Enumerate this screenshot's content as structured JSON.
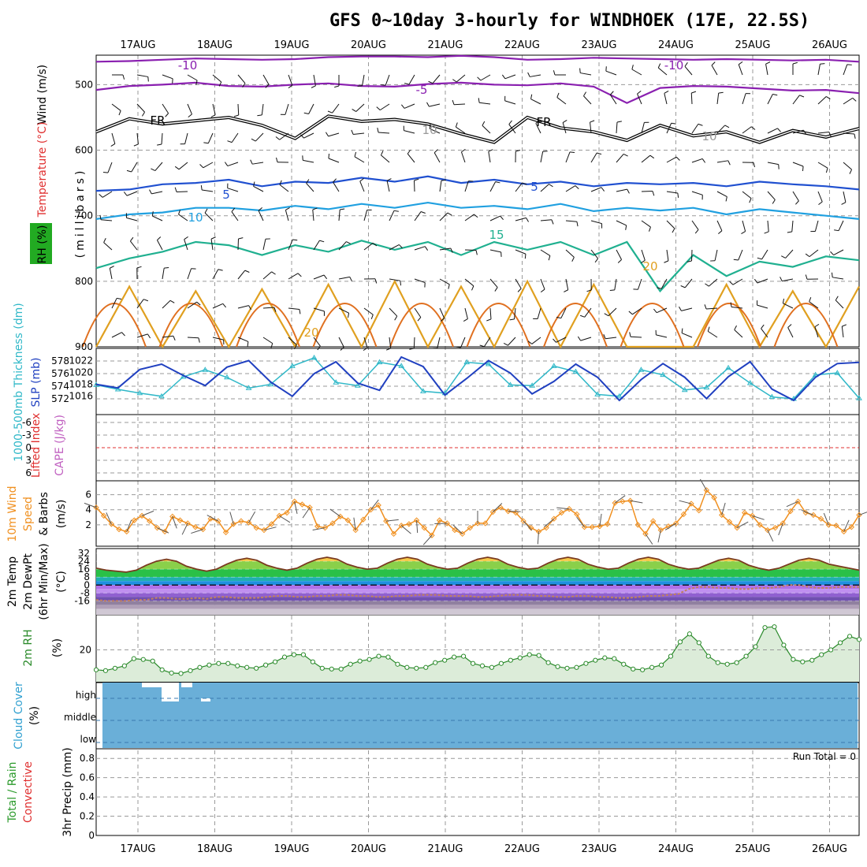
{
  "title": "GFS 0~10day 3-hourly for WINDHOEK (17E, 22.5S)",
  "dates": [
    "17AUG",
    "18AUG",
    "19AUG",
    "20AUG",
    "21AUG",
    "22AUG",
    "23AUG",
    "24AUG",
    "25AUG",
    "26AUG"
  ],
  "run_total_label": "Run Total = 0",
  "colors": {
    "grid": "#9a9a9a",
    "cloud_fill": "#6aafd8",
    "rh_fill": "#dcecd9",
    "rh_line": "#2a8a2a",
    "wind_line": "#f09020",
    "thickness_line": "#30b8c8",
    "slp_line": "#2040c0"
  },
  "chart_data": [
    {
      "panel": "upper-air",
      "type": "line",
      "ylabel_parts": [
        "RH (%)",
        "Temperature (°C)",
        "Wind (m/s)"
      ],
      "ylabel_unit": "(millibars)",
      "y_ticks": [
        500,
        600,
        700,
        800,
        900
      ],
      "ylim": [
        455,
        900
      ],
      "contour_labels": [
        "-10",
        "-10",
        "-5",
        "FR",
        "FR",
        "5",
        "5",
        "10",
        "15",
        "20",
        "20",
        "10",
        "10"
      ],
      "isotherms": [
        {
          "label": "-10",
          "color": "#8a20b0",
          "values": [
            465,
            464,
            462,
            460,
            461,
            462,
            461,
            458,
            457,
            457,
            458,
            456,
            458,
            462,
            461,
            459,
            460,
            461,
            462,
            461,
            462,
            463,
            462,
            465
          ]
        },
        {
          "label": "-5",
          "color": "#8a20b0",
          "values": [
            508,
            502,
            500,
            497,
            502,
            503,
            500,
            498,
            502,
            503,
            499,
            497,
            500,
            501,
            498,
            503,
            528,
            505,
            502,
            503,
            506,
            509,
            508,
            513
          ]
        },
        {
          "label": "FR",
          "color": "#000000",
          "values": [
            572,
            552,
            560,
            555,
            550,
            562,
            582,
            548,
            556,
            553,
            560,
            575,
            588,
            550,
            566,
            572,
            585,
            562,
            578,
            572,
            588,
            570,
            580,
            567
          ]
        },
        {
          "label": "5",
          "color": "#2050d0",
          "values": [
            662,
            660,
            652,
            650,
            645,
            655,
            648,
            650,
            642,
            648,
            640,
            650,
            645,
            652,
            648,
            655,
            650,
            652,
            650,
            655,
            648,
            652,
            655,
            660
          ]
        },
        {
          "label": "10",
          "color": "#20a0e0",
          "values": [
            705,
            698,
            695,
            688,
            688,
            692,
            685,
            690,
            682,
            688,
            680,
            688,
            685,
            690,
            682,
            693,
            688,
            692,
            688,
            698,
            690,
            695,
            700,
            705
          ]
        },
        {
          "label": "15",
          "color": "#20b090",
          "values": [
            780,
            765,
            755,
            740,
            745,
            760,
            745,
            755,
            738,
            752,
            740,
            760,
            740,
            752,
            740,
            760,
            740,
            815,
            760,
            792,
            770,
            778,
            762,
            768
          ]
        },
        {
          "label": "20",
          "color": "#e0a020",
          "values": [
            900,
            808,
            900,
            815,
            900,
            812,
            900,
            805,
            900,
            800,
            900,
            808,
            900,
            800,
            900,
            805,
            900,
            900,
            900,
            805,
            900,
            815,
            900,
            808
          ]
        }
      ]
    },
    {
      "panel": "thickness-slp",
      "type": "line",
      "ylabel": "1000-500mb Thickness (dm)",
      "ylabel2": "SLP (mb)",
      "thickness_ticks": [
        572,
        574,
        576,
        578
      ],
      "slp_ticks": [
        1016,
        1018,
        1020,
        1022
      ],
      "series": [
        {
          "name": "1000-500mb Thickness (dm)",
          "values": [
            574.2,
            573.5,
            572.9,
            572.4,
            575.5,
            576.6,
            575.4,
            573.7,
            574.3,
            577.2,
            578.5,
            574.6,
            574.1,
            577.8,
            577.2,
            573.2,
            572.9,
            577.8,
            577.5,
            574.2,
            574.1,
            577.2,
            576.3,
            572.7,
            572.4,
            576.6,
            575.8,
            573.4,
            573.8,
            576.9,
            574.5,
            572.3,
            572.0,
            575.8,
            576.1,
            572.1
          ]
        },
        {
          "name": "SLP (mb)",
          "values": [
            1018.0,
            1017.4,
            1020.5,
            1021.4,
            1019.5,
            1017.8,
            1020.9,
            1022.0,
            1018.4,
            1016.0,
            1019.8,
            1021.8,
            1018.2,
            1017.0,
            1022.6,
            1021.0,
            1016.2,
            1019.0,
            1022.0,
            1019.9,
            1016.4,
            1018.5,
            1021.4,
            1019.2,
            1015.3,
            1018.8,
            1021.5,
            1019.2,
            1015.6,
            1019.3,
            1021.8,
            1017.2,
            1015.3,
            1019.2,
            1021.5,
            1021.7
          ]
        }
      ]
    },
    {
      "panel": "cape-li",
      "type": "line",
      "ylabel": "Lifted Index",
      "ylabel2": "CAPE (J/kg)",
      "y_ticks": [
        "-6",
        "-3",
        "0",
        "3",
        "6"
      ],
      "ylim": [
        -6,
        6
      ],
      "series": [
        {
          "name": "Lifted Index",
          "values": []
        }
      ]
    },
    {
      "panel": "wind10m",
      "type": "line",
      "ylabel_parts": [
        "10m Wind",
        "Speed",
        "& Barbs"
      ],
      "ylabel_unit": "(m/s)",
      "y_ticks": [
        2,
        4,
        6
      ],
      "ylim": [
        0,
        7
      ],
      "series": [
        {
          "name": "10m Wind Speed",
          "values": [
            4.3,
            3.2,
            2.1,
            1.4,
            1.1,
            2.6,
            3.2,
            2.5,
            1.6,
            1.1,
            3.1,
            2.6,
            2.2,
            1.7,
            1.4,
            2.8,
            2.5,
            1.0,
            2.1,
            2.5,
            2.3,
            1.6,
            1.3,
            2.1,
            3.2,
            3.6,
            5.1,
            4.7,
            4.3,
            1.8,
            1.6,
            2.2,
            3.1,
            2.6,
            1.3,
            2.7,
            4.0,
            4.6,
            2.5,
            0.8,
            1.9,
            2.1,
            2.6,
            1.6,
            0.6,
            2.6,
            2.2,
            1.3,
            0.8,
            1.6,
            2.2,
            2.2,
            3.7,
            4.3,
            3.8,
            3.6,
            2.5,
            1.6,
            1.1,
            1.6,
            2.8,
            3.6,
            4.1,
            3.4,
            1.7,
            1.7,
            1.8,
            2.1,
            4.9,
            5.1,
            5.2,
            2.0,
            0.8,
            2.5,
            1.3,
            1.8,
            2.2,
            3.4,
            4.8,
            3.9,
            6.6,
            5.6,
            3.3,
            2.4,
            1.6,
            3.6,
            3.2,
            2.0,
            1.3,
            1.6,
            2.2,
            3.8,
            5.1,
            3.6,
            3.3,
            2.8,
            2.0,
            1.9,
            1.1,
            1.7,
            3.3
          ]
        }
      ]
    },
    {
      "panel": "temperature",
      "type": "area",
      "ylabel_parts": [
        "2m Temp",
        "2m DewPt",
        "(6hr Min/Max)"
      ],
      "ylabel_unit": "(°C)",
      "y_ticks": [
        "-16",
        "-8",
        "0",
        "8",
        "16",
        "24",
        "32"
      ],
      "ylim": [
        -30,
        32
      ],
      "series": [
        {
          "name": "2m Temp",
          "values": [
            17,
            15,
            14,
            13,
            15,
            20,
            24,
            26,
            24,
            19,
            16,
            14,
            16,
            21,
            25,
            27,
            25,
            20,
            17,
            15,
            17,
            22,
            26,
            28,
            26,
            21,
            18,
            16,
            17,
            22,
            26,
            28,
            26,
            21,
            18,
            16,
            17,
            22,
            26,
            28,
            26,
            21,
            18,
            16,
            17,
            22,
            26,
            28,
            26,
            21,
            18,
            16,
            17,
            22,
            26,
            28,
            26,
            21,
            18,
            16,
            17,
            21,
            25,
            27,
            25,
            20,
            17,
            15,
            17,
            21,
            25,
            27,
            25,
            21,
            19,
            17,
            15
          ]
        },
        {
          "name": "2m DewPt",
          "values": [
            -15,
            -16,
            -16,
            -16,
            -15,
            -15,
            -13,
            -13,
            -14,
            -14,
            -13,
            -14,
            -12,
            -12,
            -13,
            -13,
            -13,
            -12,
            -11,
            -11,
            -12,
            -12,
            -11,
            -11,
            -10,
            -10,
            -11,
            -11,
            -12,
            -12,
            -11,
            -11,
            -10,
            -10,
            -10,
            -11,
            -11,
            -11,
            -12,
            -12,
            -11,
            -10,
            -10,
            -10,
            -11,
            -11,
            -12,
            -12,
            -11,
            -11,
            -12,
            -12,
            -13,
            -13,
            -12,
            -11,
            -11,
            -10,
            -9,
            -4,
            -2,
            -2,
            -3,
            -3,
            -4,
            -4,
            -3,
            -3,
            -2,
            0,
            0,
            -2,
            -3,
            -3,
            -2,
            -2,
            -2
          ]
        }
      ]
    },
    {
      "panel": "rh2m",
      "type": "area",
      "ylabel": "2m RH",
      "ylabel_unit": "(%)",
      "y_ticks": [
        20
      ],
      "ylim": [
        0,
        42
      ],
      "series": [
        {
          "name": "2m RH",
          "values": [
            7.5,
            7.0,
            8.5,
            10.0,
            14.5,
            14.0,
            13.0,
            7.5,
            5.5,
            5.2,
            7.0,
            9.0,
            10.5,
            11.5,
            11.5,
            10.0,
            9.0,
            8.5,
            10.5,
            12.5,
            15.5,
            17.0,
            17.0,
            12.5,
            8.5,
            8.0,
            8.0,
            11.0,
            13.0,
            14.0,
            16.0,
            15.5,
            11.0,
            9.0,
            8.5,
            9.0,
            12.0,
            13.5,
            15.5,
            16.0,
            11.5,
            10.0,
            9.0,
            11.5,
            13.5,
            15.0,
            17.0,
            16.5,
            12.0,
            9.5,
            8.5,
            9.0,
            11.5,
            13.5,
            15.0,
            14.5,
            11.0,
            8.0,
            7.5,
            9.0,
            10.5,
            16.0,
            25.0,
            30.0,
            24.5,
            16.0,
            12.0,
            11.0,
            12.0,
            16.0,
            22.0,
            34.0,
            34.5,
            23.0,
            14.0,
            12.5,
            13.5,
            17.0,
            20.0,
            24.5,
            28.5,
            26.5
          ]
        }
      ]
    },
    {
      "panel": "cloud",
      "type": "area",
      "ylabel": "Cloud Cover",
      "ylabel_unit": "(%)",
      "levels": [
        "high",
        "middle",
        "low"
      ]
    },
    {
      "panel": "precip",
      "type": "bar",
      "ylabel_parts": [
        "Total / Rain",
        "Convective"
      ],
      "ylabel_unit": "3hr Precip (mm)",
      "y_ticks": [
        "0",
        "0.2",
        "0.4",
        "0.6",
        "0.8"
      ],
      "ylim": [
        0,
        0.9
      ],
      "values": []
    }
  ]
}
